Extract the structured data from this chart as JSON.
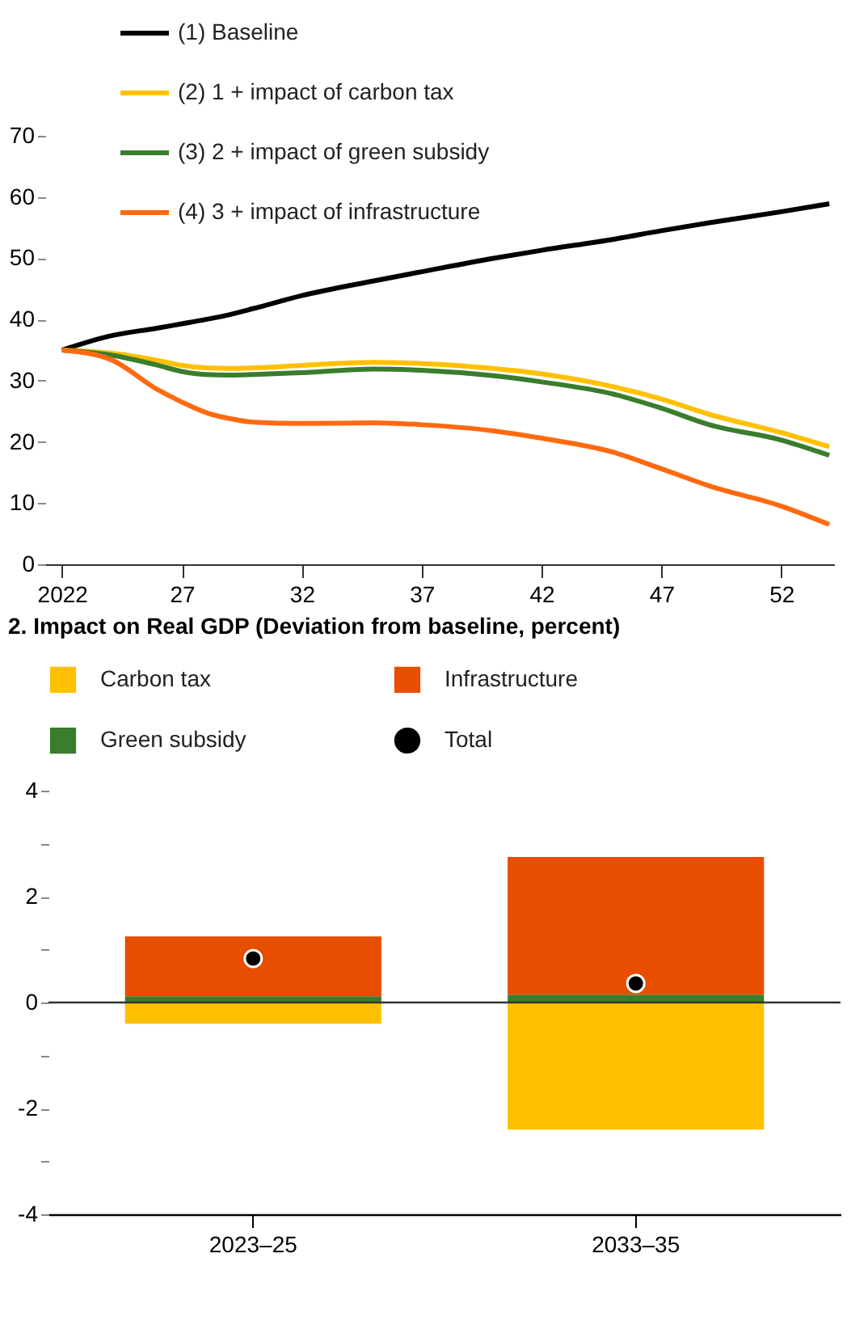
{
  "chart_data": [
    {
      "type": "line",
      "legend": "top left",
      "grid": false,
      "marker": "none",
      "line_style": "solid",
      "x": [
        2022,
        2024,
        2026,
        2027,
        2028,
        2029,
        2030,
        2032,
        2035,
        2037,
        2040,
        2042,
        2045,
        2047,
        2049,
        2052,
        2054
      ],
      "series": [
        {
          "name": "(1) Baseline",
          "color": "#000000",
          "values": [
            35,
            37.3,
            38.6,
            39.3,
            40,
            40.8,
            41.8,
            43.9,
            46.3,
            47.8,
            50,
            51.3,
            53.1,
            54.5,
            55.8,
            57.6,
            58.9
          ]
        },
        {
          "name": "(2) 1 + impact of carbon tax",
          "color": "#ffc000",
          "values": [
            35,
            34.5,
            33.3,
            32.5,
            32.1,
            32,
            32.1,
            32.5,
            33,
            32.8,
            32,
            31.1,
            29,
            27,
            24.5,
            21.5,
            19.2
          ]
        },
        {
          "name": "(3) 2 + impact of green subsidy",
          "color": "#3a7d2c",
          "values": [
            35,
            34.2,
            32.5,
            31.5,
            31,
            30.9,
            31,
            31.3,
            31.9,
            31.7,
            30.8,
            29.8,
            27.8,
            25.5,
            22.8,
            20.3,
            17.8
          ]
        },
        {
          "name": "(4) 3 + impact of infrastructure",
          "color": "#ff6a10",
          "values": [
            35,
            33.5,
            28.5,
            26.5,
            24.8,
            23.8,
            23.2,
            23,
            23.1,
            22.8,
            21.8,
            20.6,
            18.3,
            15.6,
            12.8,
            9.5,
            6.5
          ]
        }
      ],
      "xlim": [
        2021.3,
        2054.2
      ],
      "xticks": [
        2022,
        {
          "value": 2027,
          "label": "27"
        },
        {
          "value": 2032,
          "label": "32"
        },
        {
          "value": 2037,
          "label": "37"
        },
        {
          "value": 2042,
          "label": "42"
        },
        {
          "value": 2047,
          "label": "47"
        },
        {
          "value": 2052,
          "label": "52"
        }
      ],
      "ylim": [
        0,
        70
      ],
      "yticks": [
        0,
        10,
        20,
        30,
        40,
        50,
        60,
        70
      ]
    },
    {
      "type": "bar",
      "stacked": true,
      "legend": "top",
      "grid": false,
      "title": "2. Impact on Real GDP  (Deviation from baseline, percent)",
      "categories": [
        "2023–25",
        "2033–35"
      ],
      "series": [
        {
          "name": "Carbon tax",
          "color": "#ffc000",
          "values": [
            -0.4,
            -2.4
          ]
        },
        {
          "name": "Green subsidy",
          "color": "#3a7d2c",
          "values": [
            0.12,
            0.15
          ]
        },
        {
          "name": "Infrastructure",
          "color": "#e84e00",
          "values": [
            1.13,
            2.6
          ]
        },
        {
          "name": "Total",
          "type": "scatter",
          "color": "#000000",
          "marker": "circle",
          "x": [
            "2023–25",
            "2033–35"
          ],
          "values": [
            0.83,
            0.36
          ]
        }
      ],
      "ylim": [
        -4,
        4
      ],
      "yticks": [
        -4,
        {
          "value": -3,
          "label": null
        },
        -2,
        {
          "value": -1,
          "label": null
        },
        0,
        {
          "value": 1,
          "label": null
        },
        2,
        {
          "value": 3,
          "label": null
        },
        4
      ],
      "ref_lines": [
        {
          "axis": "y",
          "value": 0,
          "color": "#333333"
        }
      ]
    }
  ]
}
